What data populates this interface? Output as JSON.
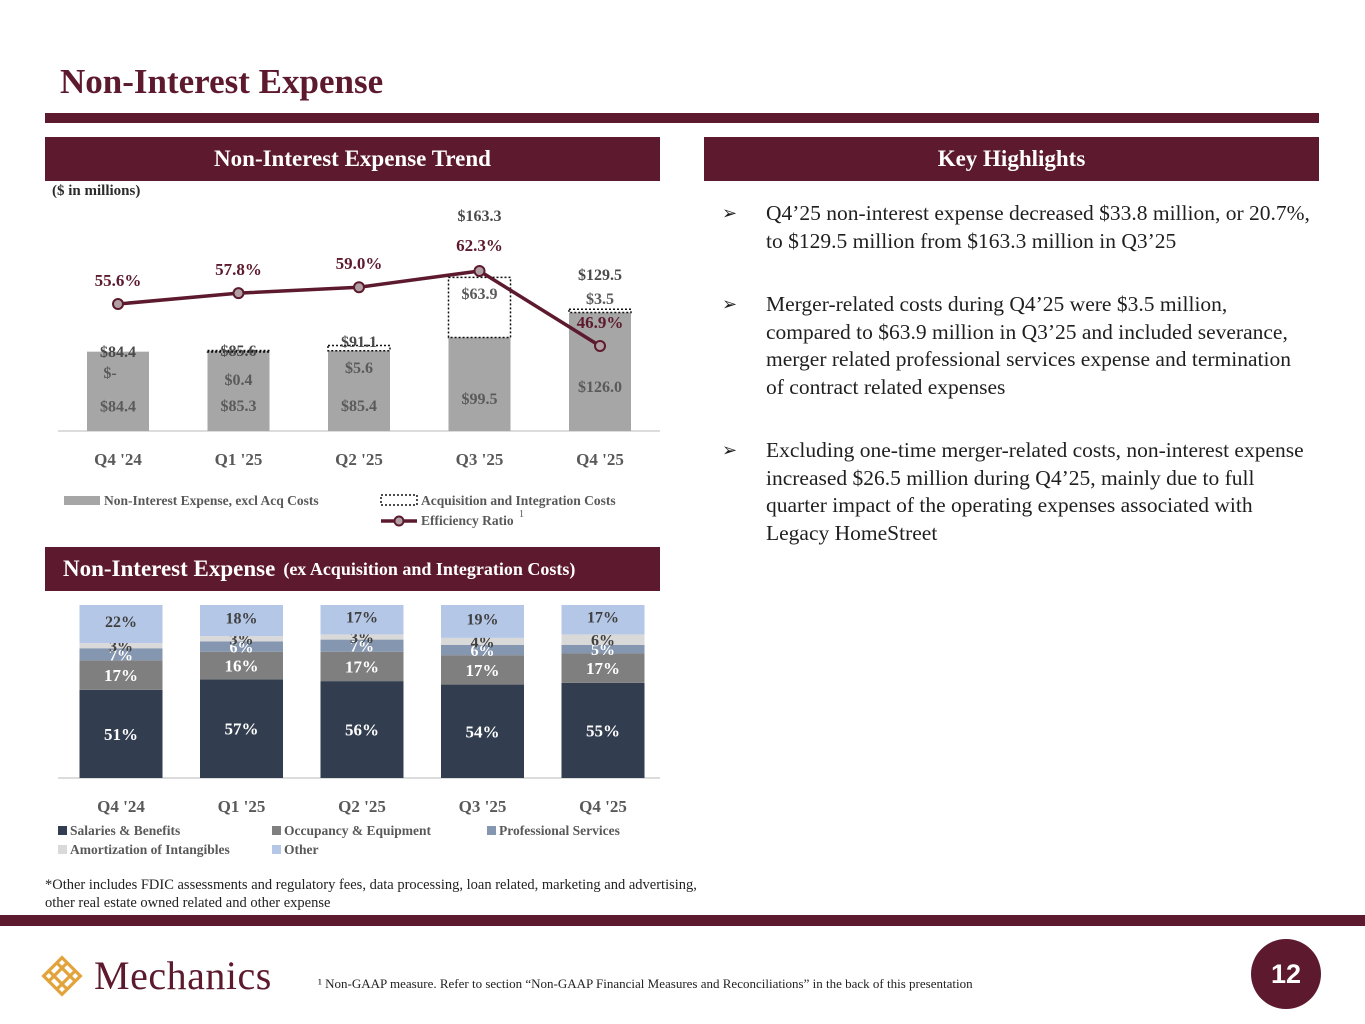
{
  "page_title": "Non-Interest Expense",
  "trend_header": "Non-Interest Expense Trend",
  "highlights_header": "Key Highlights",
  "units_label": "($ in millions)",
  "breakdown_header": {
    "main": "Non-Interest Expense",
    "sub": "(ex Acquisition and Integration Costs)"
  },
  "highlights": [
    "Q4’25 non-interest expense decreased $33.8 million, or 20.7%, to $129.5 million from $163.3 million in Q3’25",
    "Merger-related costs during Q4’25 were $3.5 million, compared to $63.9 million in Q3’25 and included severance, merger related professional services expense and termination of contract related expenses",
    "Excluding one-time merger-related costs, non-interest expense increased $26.5 million during Q4’25, mainly due to full quarter impact of the operating expenses associated with Legacy HomeStreet"
  ],
  "bullet_glyph": "➢",
  "footnote_other": "*Other includes FDIC assessments and regulatory fees, data processing, loan related, marketing and advertising, other real estate owned related and other expense",
  "footnote_nongaap": "¹ Non-GAAP measure. Refer to section “Non-GAAP Financial Measures and Reconciliations” in the back of this presentation",
  "logo_text": "Mechanics",
  "page_number": "12",
  "colors": {
    "brand": "#5d1a2e",
    "bar_grey": "#a6a6a6",
    "salaries": "#323e4f",
    "occupancy": "#7f7f7f",
    "professional": "#8496b0",
    "amortization": "#d9d9d9",
    "other": "#b4c7e7",
    "logo_gold": "#e2a33b"
  },
  "chart_data": [
    {
      "type": "bar",
      "stacked": true,
      "title": "Non-Interest Expense Trend",
      "units": "($ in millions)",
      "categories": [
        "Q4 '24",
        "Q1 '25",
        "Q2 '25",
        "Q3 '25",
        "Q4 '25"
      ],
      "series": [
        {
          "name": "Non-Interest Expense, excl Acq Costs",
          "values": [
            84.4,
            85.3,
            85.4,
            99.5,
            126.0
          ],
          "labels": [
            "$84.4",
            "$85.3",
            "$85.4",
            "$99.5",
            "$126.0"
          ]
        },
        {
          "name": "Acquisition and Integration Costs",
          "values": [
            0,
            0.4,
            5.6,
            63.9,
            3.5
          ],
          "labels": [
            "$-",
            "$0.4",
            "$5.6",
            "$63.9",
            "$3.5"
          ]
        },
        {
          "name": "Efficiency Ratio",
          "type": "line",
          "footnote": "1",
          "values": [
            55.6,
            57.8,
            59.0,
            62.3,
            46.9
          ],
          "labels": [
            "55.6%",
            "57.8%",
            "59.0%",
            "62.3%",
            "46.9%"
          ]
        }
      ],
      "totals": [
        84.4,
        85.6,
        91.1,
        163.3,
        129.5
      ],
      "total_labels": [
        "$84.4",
        "$85.6",
        "$91.1",
        "$163.3",
        "$129.5"
      ],
      "legend": "bottom"
    },
    {
      "type": "bar",
      "stacked": true,
      "percent": true,
      "title": "Non-Interest Expense (ex Acquisition and Integration Costs)",
      "categories": [
        "Q4 '24",
        "Q1 '25",
        "Q2 '25",
        "Q3 '25",
        "Q4 '25"
      ],
      "series": [
        {
          "name": "Salaries & Benefits",
          "values": [
            51,
            57,
            56,
            54,
            55
          ]
        },
        {
          "name": "Occupancy & Equipment",
          "values": [
            17,
            16,
            17,
            17,
            17
          ]
        },
        {
          "name": "Professional Services",
          "values": [
            7,
            6,
            7,
            6,
            5
          ]
        },
        {
          "name": "Amortization of Intangibles",
          "values": [
            3,
            3,
            3,
            4,
            6
          ]
        },
        {
          "name": "Other",
          "values": [
            22,
            18,
            17,
            19,
            17
          ]
        }
      ],
      "legend": "bottom"
    }
  ]
}
